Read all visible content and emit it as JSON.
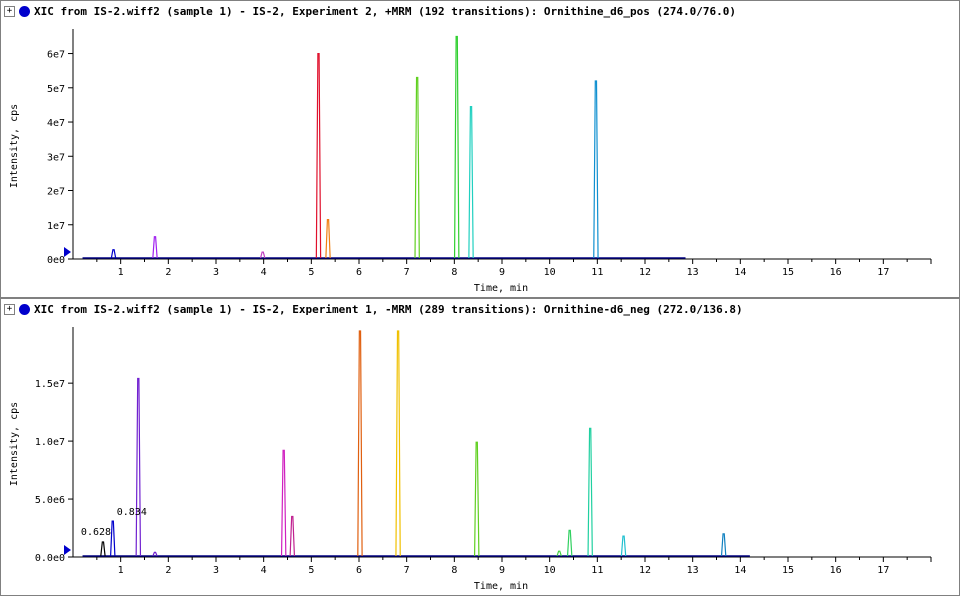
{
  "panels": [
    {
      "title": "XIC from IS-2.wiff2 (sample 1) - IS-2, Experiment 2, +MRM (192 transitions): Ornithine_d6_pos (274.0/76.0)",
      "ylabel": "Intensity, cps",
      "xlabel": "Time, min",
      "icons": {
        "expander": "+",
        "dot_color": "#0000cc"
      }
    },
    {
      "title": "XIC from IS-2.wiff2 (sample 1) - IS-2, Experiment 1, -MRM (289 transitions): Ornithine-d6_neg (272.0/136.8)",
      "ylabel": "Intensity, cps",
      "xlabel": "Time, min",
      "icons": {
        "expander": "+",
        "dot_color": "#0000cc"
      }
    }
  ],
  "chart_data": [
    {
      "type": "line",
      "title": "XIC from IS-2.wiff2 (sample 1) - IS-2, Experiment 2, +MRM (192 transitions): Ornithine_d6_pos (274.0/76.0)",
      "xlabel": "Time, min",
      "ylabel": "Intensity, cps",
      "xlim": [
        0,
        18.0
      ],
      "ylim": [
        0,
        66000000
      ],
      "x_ticks": [
        1,
        2,
        3,
        4,
        5,
        6,
        7,
        8,
        9,
        10,
        11,
        12,
        13,
        14,
        15,
        16,
        17
      ],
      "y_ticks": [
        {
          "value": 0,
          "label": "0e0"
        },
        {
          "value": 10000000,
          "label": "1e7"
        },
        {
          "value": 20000000,
          "label": "2e7"
        },
        {
          "value": 30000000,
          "label": "3e7"
        },
        {
          "value": 40000000,
          "label": "4e7"
        },
        {
          "value": 50000000,
          "label": "5e7"
        },
        {
          "value": 60000000,
          "label": "6e7"
        }
      ],
      "baseline": {
        "x_start": 0.2,
        "x_end": 12.85,
        "color": "#000080"
      },
      "peaks": [
        {
          "x": 0.85,
          "height": 2700000,
          "color": "#0000cc"
        },
        {
          "x": 1.72,
          "height": 6500000,
          "color": "#a020f0"
        },
        {
          "x": 3.98,
          "height": 2000000,
          "color": "#c040c0"
        },
        {
          "x": 5.15,
          "height": 60000000,
          "color": "#e0102c"
        },
        {
          "x": 5.35,
          "height": 11500000,
          "color": "#f08010"
        },
        {
          "x": 7.22,
          "height": 53000000,
          "color": "#60d020"
        },
        {
          "x": 8.05,
          "height": 65000000,
          "color": "#30d030"
        },
        {
          "x": 8.35,
          "height": 44500000,
          "color": "#20d0c0"
        },
        {
          "x": 10.97,
          "height": 52000000,
          "color": "#1090d0"
        }
      ],
      "annotations": []
    },
    {
      "type": "line",
      "title": "XIC from IS-2.wiff2 (sample 1) - IS-2, Experiment 1, -MRM (289 transitions): Ornithine-d6_neg (272.0/136.8)",
      "xlabel": "Time, min",
      "ylabel": "Intensity, cps",
      "xlim": [
        0,
        18.0
      ],
      "ylim": [
        0,
        19500000
      ],
      "x_ticks": [
        1,
        2,
        3,
        4,
        5,
        6,
        7,
        8,
        9,
        10,
        11,
        12,
        13,
        14,
        15,
        16,
        17
      ],
      "y_ticks": [
        {
          "value": 0,
          "label": "0.0e0"
        },
        {
          "value": 5000000,
          "label": "5.0e6"
        },
        {
          "value": 10000000,
          "label": "1.0e7"
        },
        {
          "value": 15000000,
          "label": "1.5e7"
        }
      ],
      "baseline": {
        "x_start": 0.2,
        "x_end": 14.2,
        "color": "#000080"
      },
      "peaks": [
        {
          "x": 0.628,
          "height": 1300000,
          "color": "#000000"
        },
        {
          "x": 0.834,
          "height": 3100000,
          "color": "#0000cc"
        },
        {
          "x": 1.37,
          "height": 15400000,
          "color": "#7020d0"
        },
        {
          "x": 1.72,
          "height": 400000,
          "color": "#7020d0"
        },
        {
          "x": 4.42,
          "height": 9200000,
          "color": "#d020c0"
        },
        {
          "x": 4.6,
          "height": 3500000,
          "color": "#c02090"
        },
        {
          "x": 6.02,
          "height": 19500000,
          "color": "#e06010"
        },
        {
          "x": 6.82,
          "height": 19500000,
          "color": "#f0c000"
        },
        {
          "x": 8.47,
          "height": 9900000,
          "color": "#60d020"
        },
        {
          "x": 10.2,
          "height": 500000,
          "color": "#40d040"
        },
        {
          "x": 10.42,
          "height": 2300000,
          "color": "#30d060"
        },
        {
          "x": 10.85,
          "height": 11100000,
          "color": "#20d0a0"
        },
        {
          "x": 11.55,
          "height": 1800000,
          "color": "#20c0d0"
        },
        {
          "x": 13.65,
          "height": 2000000,
          "color": "#1080c0"
        }
      ],
      "annotations": [
        {
          "x": 0.628,
          "label": "0.628"
        },
        {
          "x": 0.834,
          "label": "0.834"
        }
      ]
    }
  ]
}
